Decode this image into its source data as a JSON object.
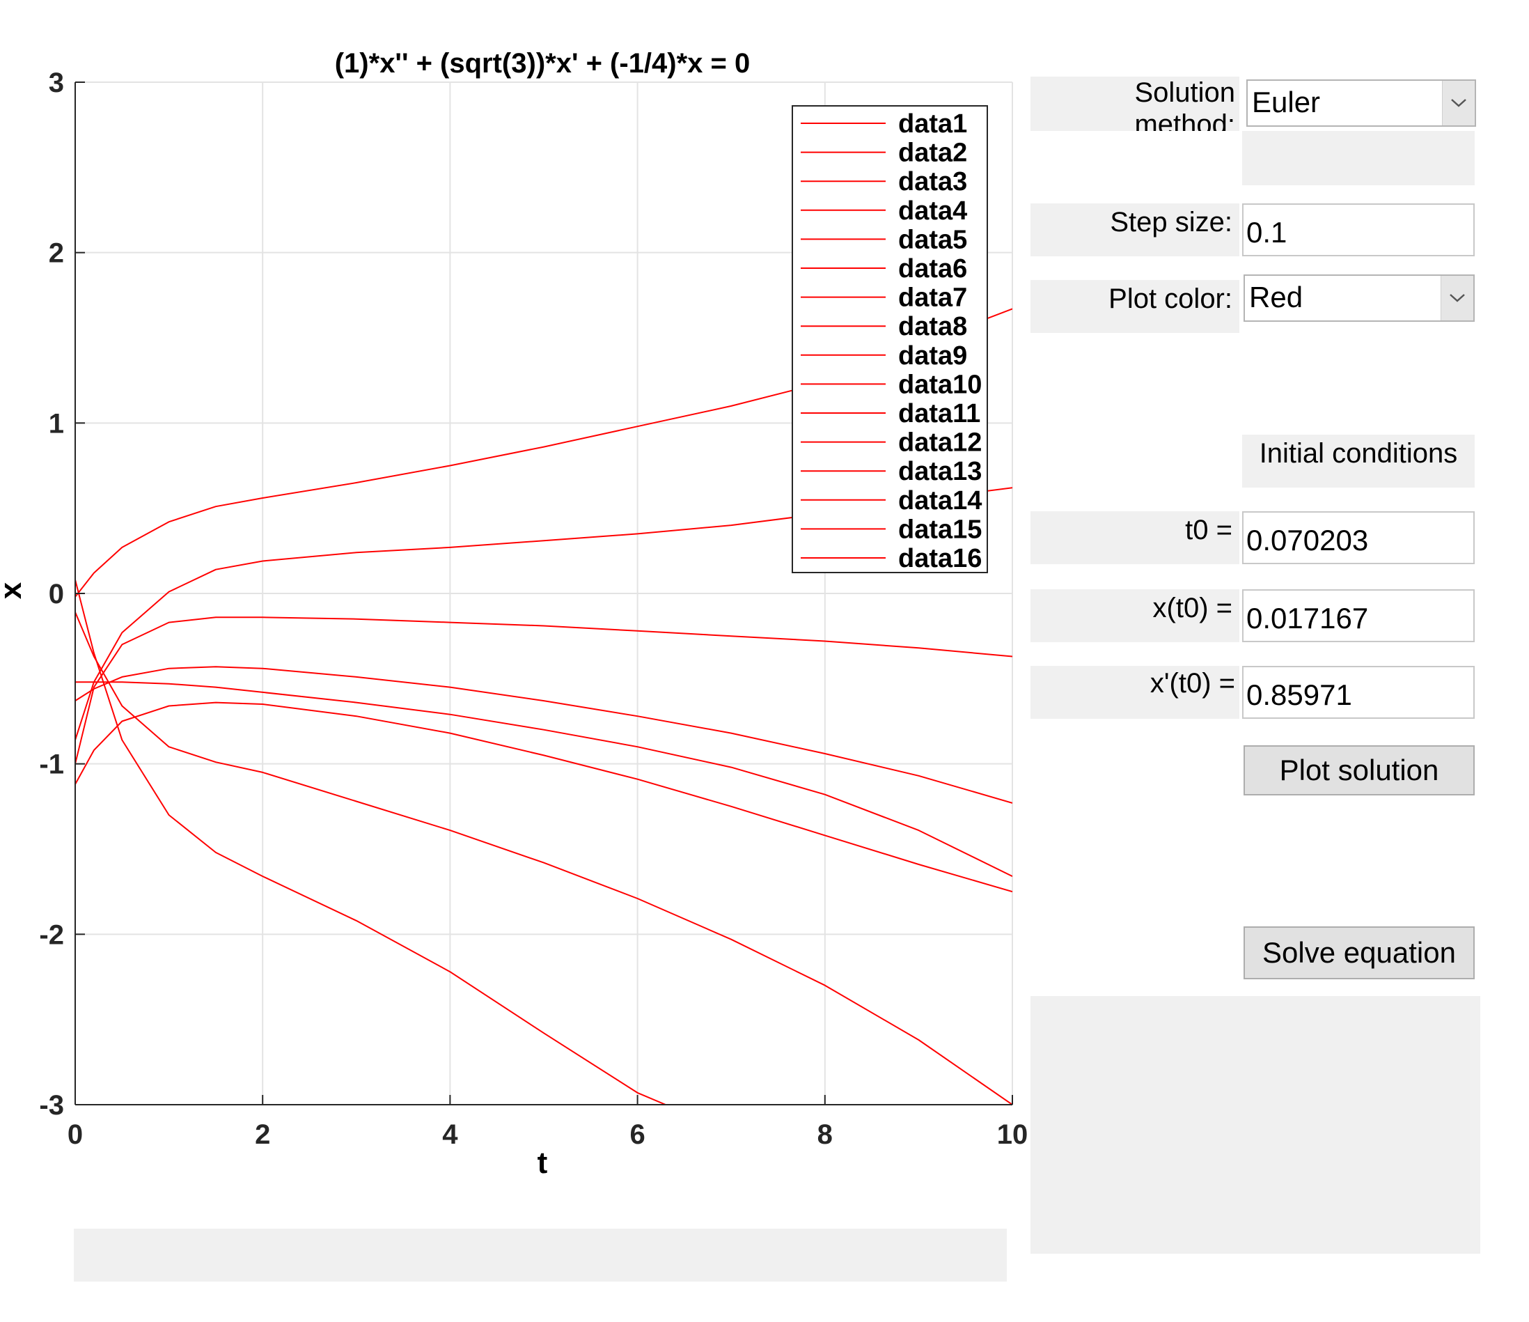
{
  "chart_data": {
    "type": "line",
    "title": "(1)*x'' + (sqrt(3))*x' + (-1/4)*x = 0",
    "xlabel": "t",
    "ylabel": "x",
    "xlim": [
      0,
      10
    ],
    "ylim": [
      -3,
      3
    ],
    "xticks": [
      "0",
      "2",
      "4",
      "6",
      "8",
      "10"
    ],
    "yticks": [
      "3",
      "2",
      "1",
      "0",
      "-1",
      "-2",
      "-3"
    ],
    "grid": true,
    "legend_position": "top-right",
    "line_color": "#ff0000",
    "series": [
      {
        "name": "data1",
        "x": [
          0.0,
          0.2,
          0.5,
          1,
          1.5,
          2,
          3,
          4,
          5,
          6,
          7,
          8,
          9,
          10
        ],
        "y": [
          -0.02,
          0.12,
          0.27,
          0.42,
          0.51,
          0.56,
          0.65,
          0.75,
          0.86,
          0.98,
          1.1,
          1.24,
          1.46,
          1.67
        ]
      },
      {
        "name": "data2",
        "x": [
          0.0,
          0.2,
          0.5,
          1,
          1.5,
          2,
          3,
          4,
          5,
          6,
          7,
          8,
          9,
          10
        ],
        "y": [
          -0.86,
          -0.52,
          -0.23,
          0.01,
          0.14,
          0.19,
          0.24,
          0.27,
          0.31,
          0.35,
          0.4,
          0.47,
          0.55,
          0.62
        ]
      },
      {
        "name": "data3",
        "x": [
          0.0,
          0.2,
          0.5,
          1,
          1.5,
          2,
          3,
          4,
          5,
          6,
          7,
          8,
          9,
          10
        ],
        "y": [
          -1.0,
          -0.55,
          -0.3,
          -0.17,
          -0.14,
          -0.14,
          -0.15,
          -0.17,
          -0.19,
          -0.22,
          -0.25,
          -0.28,
          -0.32,
          -0.37
        ]
      },
      {
        "name": "data4",
        "x": [
          0.0,
          0.2,
          0.5,
          1,
          1.5,
          2,
          3,
          4,
          5,
          6,
          7,
          8,
          9,
          10
        ],
        "y": [
          -0.63,
          -0.56,
          -0.49,
          -0.44,
          -0.43,
          -0.44,
          -0.49,
          -0.55,
          -0.63,
          -0.72,
          -0.82,
          -0.94,
          -1.07,
          -1.23
        ]
      },
      {
        "name": "data5",
        "x": [
          0.0,
          0.2,
          0.5,
          1,
          1.5,
          2,
          3,
          4,
          5,
          6,
          7,
          8,
          9,
          10
        ],
        "y": [
          -1.12,
          -0.92,
          -0.75,
          -0.66,
          -0.64,
          -0.65,
          -0.72,
          -0.82,
          -0.95,
          -1.09,
          -1.25,
          -1.42,
          -1.59,
          -1.75
        ]
      },
      {
        "name": "data6",
        "x": [
          0.0,
          0.2,
          0.5,
          1,
          1.5,
          2,
          3,
          4,
          5,
          6,
          7,
          8,
          9,
          10
        ],
        "y": [
          -0.52,
          -0.52,
          -0.52,
          -0.53,
          -0.55,
          -0.58,
          -0.64,
          -0.71,
          -0.8,
          -0.9,
          -1.02,
          -1.18,
          -1.39,
          -1.66
        ]
      },
      {
        "name": "data7",
        "x": [
          0.0,
          0.2,
          0.5,
          1,
          1.5,
          2,
          3,
          4,
          5,
          6,
          7,
          8,
          9,
          10
        ],
        "y": [
          -0.11,
          -0.37,
          -0.66,
          -0.9,
          -0.99,
          -1.05,
          -1.22,
          -1.39,
          -1.58,
          -1.79,
          -2.03,
          -2.3,
          -2.62,
          -3.0
        ]
      },
      {
        "name": "data8",
        "x": [
          0.0,
          0.2,
          0.5,
          1,
          1.5,
          2,
          3,
          4,
          5,
          6,
          6.3
        ],
        "y": [
          0.08,
          -0.35,
          -0.86,
          -1.3,
          -1.52,
          -1.66,
          -1.92,
          -2.22,
          -2.58,
          -2.93,
          -3.0
        ]
      }
    ]
  },
  "legend": {
    "entries": [
      "data1",
      "data2",
      "data3",
      "data4",
      "data5",
      "data6",
      "data7",
      "data8",
      "data9",
      "data10",
      "data11",
      "data12",
      "data13",
      "data14",
      "data15",
      "data16"
    ]
  },
  "controls": {
    "solution_method_label": "Solution method:",
    "solution_method_value": "Euler",
    "step_size_label": "Step size:",
    "step_size_value": "0.1",
    "plot_color_label": "Plot color:",
    "plot_color_value": "Red",
    "initial_conditions_heading": "Initial conditions",
    "t0_label": "t0 =",
    "t0_value": "0.070203",
    "x_t0_label": "x(t0) =",
    "x_t0_value": "0.017167",
    "xp_t0_label": "x'(t0) =",
    "xp_t0_value": "0.85971",
    "plot_solution_button": "Plot solution",
    "solve_equation_button": "Solve equation"
  },
  "icons": {
    "dropdown": "chevron-down-icon"
  }
}
